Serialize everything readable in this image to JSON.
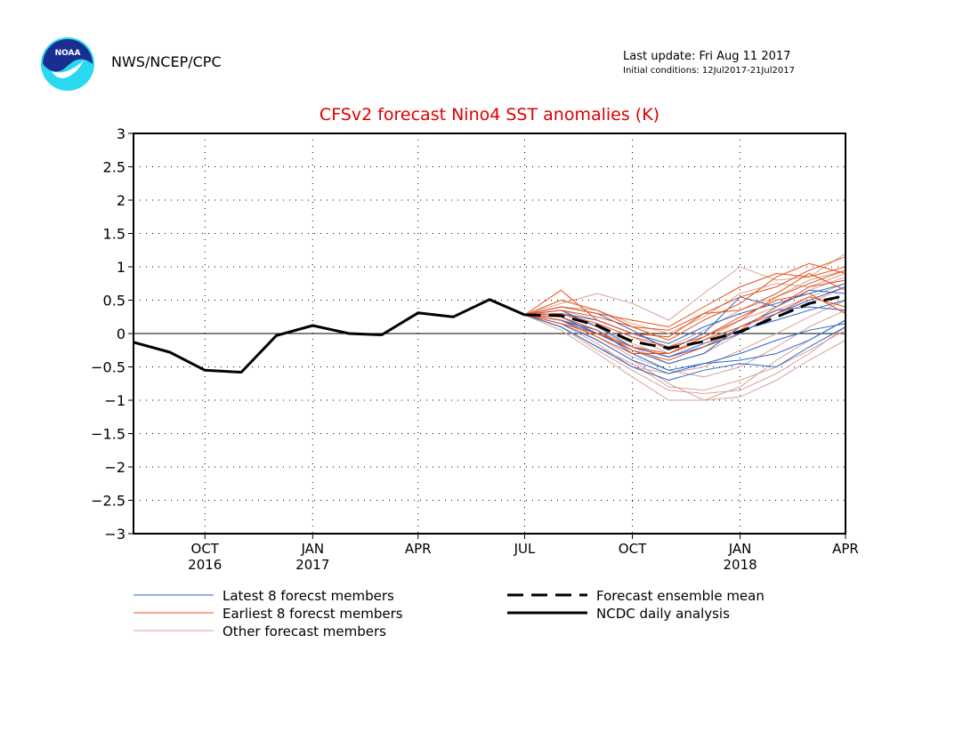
{
  "header": {
    "agency": "NWS/NCEP/CPC",
    "last_update": "Last update: Fri Aug 11 2017",
    "initial_conditions": "Initial conditions: 12Jul2017-21Jul2017",
    "logo_text": "NOAA"
  },
  "colors": {
    "title": "#dd0000",
    "latest": "#2a66c9",
    "earliest": "#e8501a",
    "other": "#d8a296",
    "analysis": "#000000"
  },
  "chart_data": {
    "type": "line",
    "title": "CFSv2 forecast Nino4 SST anomalies (K)",
    "xlabel": "",
    "ylabel": "",
    "ylim": [
      -3,
      3
    ],
    "y_ticks": [
      3,
      2.5,
      2,
      1.5,
      1,
      0.5,
      0,
      -0.5,
      -1,
      -1.5,
      -2,
      -2.5,
      -3
    ],
    "x_range": [
      "2016-08-01",
      "2018-04-01"
    ],
    "x_ticks": [
      {
        "date": "2016-10-01",
        "label": "OCT",
        "year": "2016"
      },
      {
        "date": "2017-01-01",
        "label": "JAN",
        "year": "2017"
      },
      {
        "date": "2017-04-01",
        "label": "APR",
        "year": ""
      },
      {
        "date": "2017-07-01",
        "label": "JUL",
        "year": ""
      },
      {
        "date": "2017-10-01",
        "label": "OCT",
        "year": ""
      },
      {
        "date": "2018-01-01",
        "label": "JAN",
        "year": "2018"
      },
      {
        "date": "2018-04-01",
        "label": "APR",
        "year": ""
      }
    ],
    "grid": true,
    "forecast_dates": [
      "2017-07-01",
      "2017-08-01",
      "2017-09-01",
      "2017-10-01",
      "2017-11-01",
      "2017-12-01",
      "2018-01-01",
      "2018-02-01",
      "2018-03-01",
      "2018-04-01"
    ],
    "series": [
      {
        "name": "NCDC daily analysis",
        "style": "solid-thick",
        "x": [
          "2016-08-01",
          "2016-09-01",
          "2016-10-01",
          "2016-11-01",
          "2016-12-01",
          "2017-01-01",
          "2017-02-01",
          "2017-03-01",
          "2017-04-01",
          "2017-05-01",
          "2017-06-01",
          "2017-07-01"
        ],
        "values": [
          -0.13,
          -0.28,
          -0.55,
          -0.58,
          -0.03,
          0.12,
          0.0,
          -0.02,
          0.31,
          0.25,
          0.51,
          0.28
        ]
      },
      {
        "name": "Forecast ensemble mean",
        "style": "dashed-thick",
        "x": [
          "2017-07-01",
          "2017-08-01",
          "2017-09-01",
          "2017-10-01",
          "2017-11-01",
          "2017-12-01",
          "2018-01-01",
          "2018-02-01",
          "2018-03-01",
          "2018-04-01"
        ],
        "values": [
          0.28,
          0.27,
          0.12,
          -0.12,
          -0.22,
          -0.12,
          0.03,
          0.25,
          0.45,
          0.57
        ]
      }
    ],
    "ensemble": {
      "latest": [
        [
          0.28,
          0.2,
          0.05,
          -0.3,
          -0.55,
          -0.45,
          -0.3,
          -0.1,
          0.05,
          0.15
        ],
        [
          0.28,
          0.35,
          0.1,
          -0.2,
          -0.35,
          -0.2,
          0.0,
          0.3,
          0.5,
          0.7
        ],
        [
          0.28,
          0.15,
          -0.1,
          -0.4,
          -0.6,
          -0.45,
          -0.4,
          -0.3,
          -0.1,
          0.2
        ],
        [
          0.28,
          0.3,
          0.2,
          0.0,
          -0.15,
          0.1,
          0.3,
          0.45,
          0.6,
          0.75
        ],
        [
          0.28,
          0.25,
          0.0,
          -0.25,
          -0.45,
          -0.3,
          0.1,
          0.35,
          0.4,
          0.35
        ],
        [
          0.28,
          0.1,
          -0.2,
          -0.5,
          -0.7,
          -0.55,
          -0.45,
          -0.5,
          -0.2,
          0.1
        ],
        [
          0.28,
          0.4,
          0.3,
          0.05,
          -0.25,
          0.0,
          0.55,
          0.4,
          0.65,
          0.6
        ],
        [
          0.28,
          0.2,
          0.0,
          -0.2,
          -0.35,
          -0.15,
          0.05,
          0.2,
          0.35,
          0.5
        ]
      ],
      "earliest": [
        [
          0.28,
          0.5,
          0.35,
          0.1,
          -0.1,
          0.2,
          0.45,
          0.85,
          1.05,
          0.9
        ],
        [
          0.28,
          0.65,
          0.2,
          0.0,
          -0.05,
          0.3,
          0.55,
          0.7,
          0.95,
          1.15
        ],
        [
          0.28,
          0.3,
          0.15,
          -0.05,
          -0.2,
          -0.05,
          0.2,
          0.55,
          0.75,
          0.95
        ],
        [
          0.28,
          0.25,
          0.05,
          -0.25,
          -0.4,
          -0.2,
          0.05,
          0.4,
          0.7,
          0.8
        ],
        [
          0.28,
          0.35,
          0.25,
          0.1,
          0.05,
          0.3,
          0.35,
          0.6,
          0.9,
          0.65
        ],
        [
          0.28,
          0.2,
          -0.05,
          -0.3,
          -0.3,
          -0.1,
          0.1,
          0.3,
          0.55,
          0.4
        ],
        [
          0.28,
          0.4,
          0.3,
          0.2,
          0.1,
          0.4,
          0.7,
          0.9,
          0.85,
          1.0
        ],
        [
          0.28,
          0.15,
          0.0,
          -0.2,
          -0.3,
          -0.05,
          0.25,
          0.5,
          0.6,
          0.3
        ]
      ],
      "other": [
        [
          0.28,
          0.1,
          -0.25,
          -0.55,
          -0.85,
          -0.9,
          -0.85,
          -0.6,
          -0.3,
          0.1
        ],
        [
          0.28,
          0.45,
          0.6,
          0.45,
          0.2,
          0.6,
          1.0,
          0.8,
          0.85,
          1.2
        ],
        [
          0.28,
          0.2,
          -0.1,
          -0.4,
          -0.75,
          -1.0,
          -0.95,
          -0.7,
          -0.4,
          -0.1
        ],
        [
          0.28,
          0.35,
          0.2,
          0.0,
          -0.2,
          0.05,
          0.35,
          0.55,
          0.8,
          0.95
        ],
        [
          0.28,
          0.15,
          -0.15,
          -0.5,
          -0.6,
          -0.5,
          -0.25,
          0.0,
          0.25,
          0.5
        ],
        [
          0.28,
          0.05,
          -0.3,
          -0.65,
          -1.0,
          -1.0,
          -0.8,
          -0.4,
          -0.1,
          0.2
        ],
        [
          0.28,
          0.3,
          0.15,
          -0.05,
          -0.3,
          -0.1,
          0.2,
          0.4,
          0.65,
          0.85
        ],
        [
          0.28,
          0.25,
          0.05,
          -0.2,
          -0.45,
          -0.3,
          0.0,
          0.3,
          0.45,
          0.7
        ],
        [
          0.28,
          0.4,
          0.35,
          0.15,
          0.0,
          0.25,
          0.6,
          0.75,
          0.7,
          0.9
        ],
        [
          0.28,
          0.2,
          -0.05,
          -0.35,
          -0.55,
          -0.65,
          -0.5,
          -0.2,
          0.1,
          0.35
        ],
        [
          0.28,
          0.1,
          -0.2,
          -0.45,
          -0.8,
          -0.85,
          -0.7,
          -0.5,
          -0.25,
          0.05
        ],
        [
          0.28,
          0.3,
          0.1,
          -0.15,
          -0.35,
          -0.2,
          0.1,
          0.35,
          0.55,
          0.75
        ]
      ]
    },
    "legend": {
      "placement": "bottom",
      "items": [
        {
          "label": "Latest 8 forecst members",
          "style": "latest"
        },
        {
          "label": "Earliest 8 forecst members",
          "style": "earliest"
        },
        {
          "label": "Other forecast members",
          "style": "other"
        },
        {
          "label": "Forecast ensemble mean",
          "style": "mean"
        },
        {
          "label": "NCDC daily analysis",
          "style": "analysis"
        }
      ]
    }
  }
}
